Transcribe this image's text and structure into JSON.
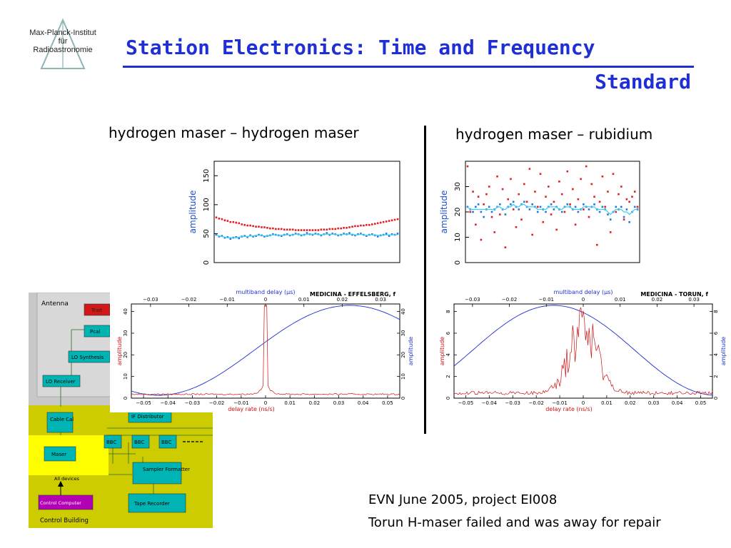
{
  "logo": {
    "lines": [
      "Max-Planck-Institut",
      "für",
      "Radioastronomie"
    ],
    "color": "#8fb4b4"
  },
  "title": {
    "line1": "Station Electronics: Time and Frequency",
    "line2": "Standard",
    "color": "#1f2fd6"
  },
  "columns": {
    "left_label": "hydrogen maser  –  hydrogen maser",
    "right_label": "hydrogen maser – rubidium"
  },
  "footer": {
    "line1": "EVN June 2005, project EI008",
    "line2": "Torun H-maser failed and was away for repair"
  },
  "block_diagram": {
    "antenna_label": "Antenna",
    "control_building_label": "Control Building",
    "boxes": {
      "trad": "Trad",
      "pcal": "Pcal",
      "lo_synth": "LO Synthesis",
      "lo_receiver": "LO Receiver",
      "cable_cal": "Cable Cal",
      "if_distributor": "IF Distributor",
      "bbc": "BBC",
      "maser": "Maser",
      "all_devices": "All devices",
      "sampler": "Sampler Formatter",
      "control_computer": "Control Computer",
      "tape_recorder": "Tape Recorder"
    },
    "colors": {
      "antenna_bg": "#c8c8c8",
      "building_bg": "#cccc00",
      "box": "#00b4b4",
      "maser_bg": "#ffff00",
      "red": "#d01818",
      "magenta": "#b400b4"
    }
  },
  "chart_data": [
    {
      "type": "scatter",
      "ylabel": "amplitude",
      "ylim": [
        0,
        175
      ],
      "yticks": [
        0,
        50,
        100,
        150
      ],
      "grid": false,
      "series": [
        {
          "color": "#e02020",
          "values": [
            78,
            76,
            75,
            73,
            72,
            70,
            70,
            69,
            68,
            66,
            65,
            64,
            64,
            63,
            62,
            62,
            61,
            61,
            60,
            59,
            59,
            58,
            58,
            58,
            57,
            57,
            57,
            57,
            56,
            56,
            56,
            56,
            56,
            56,
            56,
            56,
            56,
            57,
            57,
            57,
            58,
            58,
            58,
            59,
            59,
            60,
            60,
            61,
            62,
            63,
            63,
            64,
            64,
            65,
            65,
            66,
            67,
            68,
            69,
            70,
            71,
            72,
            73,
            74,
            75
          ]
        },
        {
          "color": "#1e78e0",
          "values": [
            48,
            45,
            46,
            43,
            44,
            41,
            43,
            44,
            42,
            45,
            46,
            44,
            47,
            45,
            46,
            48,
            47,
            45,
            46,
            47,
            49,
            48,
            47,
            46,
            48,
            49,
            47,
            48,
            50,
            49,
            47,
            48,
            51,
            49,
            48,
            50,
            49,
            47,
            49,
            51,
            48,
            50,
            49,
            47,
            48,
            50,
            49,
            51,
            48,
            47,
            49,
            50,
            48,
            46,
            48,
            49,
            47,
            45,
            47,
            48,
            50,
            46,
            49,
            48,
            50
          ]
        },
        {
          "color": "#40d0f0",
          "values": [
            48,
            46,
            45,
            44,
            43,
            43,
            43,
            43,
            44,
            45,
            45,
            45,
            46,
            46,
            47,
            47,
            47,
            46,
            46,
            47,
            48,
            48,
            47,
            47,
            48,
            48,
            48,
            48,
            49,
            49,
            48,
            48,
            49,
            49,
            49,
            49,
            49,
            48,
            49,
            49,
            49,
            49,
            49,
            48,
            48,
            49,
            49,
            49,
            49,
            48,
            48,
            49,
            48,
            47,
            48,
            48,
            47,
            47,
            47,
            48,
            48,
            48,
            48,
            48,
            48
          ]
        }
      ]
    },
    {
      "type": "scatter",
      "ylabel": "amplitude",
      "ylim": [
        0,
        40
      ],
      "yticks": [
        0,
        10,
        20,
        30
      ],
      "grid": false,
      "series": [
        {
          "color": "#e02020",
          "values": [
            38,
            20,
            28,
            15,
            26,
            9,
            23,
            27,
            30,
            18,
            12,
            34,
            19,
            29,
            6,
            25,
            33,
            21,
            14,
            27,
            17,
            31,
            24,
            37,
            11,
            28,
            22,
            35,
            16,
            26,
            30,
            19,
            24,
            13,
            32,
            27,
            20,
            36,
            23,
            29,
            15,
            25,
            33,
            21,
            38,
            18,
            31,
            26,
            7,
            24,
            34,
            22,
            28,
            12,
            35,
            20,
            27,
            30,
            17,
            25,
            24,
            26,
            28,
            22
          ]
        },
        {
          "color": "#1e78e0",
          "values": [
            22,
            21,
            20,
            22,
            23,
            20,
            18,
            21,
            22,
            20,
            21,
            22,
            23,
            21,
            19,
            22,
            23,
            24,
            22,
            21,
            23,
            24,
            22,
            21,
            23,
            22,
            20,
            22,
            21,
            20,
            22,
            23,
            21,
            22,
            21,
            20,
            22,
            23,
            22,
            21,
            22,
            20,
            21,
            23,
            22,
            21,
            22,
            23,
            21,
            20,
            22,
            21,
            19,
            17,
            20,
            22,
            21,
            22,
            18,
            21,
            16,
            20,
            22,
            21
          ]
        },
        {
          "color": "#40d0f0",
          "values": [
            22,
            21,
            21,
            21,
            21,
            21,
            21,
            21,
            21,
            21,
            21,
            22,
            22,
            21,
            21,
            22,
            22,
            23,
            22,
            22,
            23,
            23,
            22,
            22,
            22,
            22,
            21,
            21,
            21,
            21,
            22,
            22,
            22,
            22,
            21,
            21,
            22,
            22,
            22,
            21,
            21,
            21,
            21,
            22,
            22,
            22,
            22,
            22,
            21,
            21,
            21,
            21,
            20,
            19,
            20,
            21,
            21,
            21,
            20,
            20,
            19,
            20,
            21,
            21
          ]
        }
      ]
    },
    {
      "type": "line",
      "title": "MEDICINA - EFFELSBERG, f",
      "top_axis_label": "multiband delay (μs)",
      "top_ticks": [
        "−0.03",
        "−0.02",
        "−0.01",
        "0",
        "0.01",
        "0.02",
        "0.03"
      ],
      "xlabel": "delay rate (ns/s)",
      "x_ticks": [
        "−0.05",
        "−0.04",
        "−0.03",
        "−0.02",
        "−0.01",
        "0",
        "0.01",
        "0.02",
        "0.03",
        "0.04",
        "0.05"
      ],
      "ylabel_left": "amplitude",
      "ylabel_right": "amplitude",
      "left_yticks": [
        "0",
        "10",
        "20",
        "30",
        "40"
      ],
      "right_yticks": [
        "0",
        "10",
        "20",
        "30",
        "40"
      ],
      "series": [
        {
          "name": "delay",
          "color": "#2030d0",
          "peak_delay_us": 0.022,
          "min_delay_us": -0.028
        },
        {
          "name": "rate",
          "color": "#d01010",
          "peak_rate": 0.0
        }
      ]
    },
    {
      "type": "line",
      "title": "MEDICINA - TORUN, f",
      "top_axis_label": "multiband delay (μs)",
      "top_ticks": [
        "−0.03",
        "−0.02",
        "−0.01",
        "0",
        "0.01",
        "0.02",
        "0.03"
      ],
      "xlabel": "delay rate (ns/s)",
      "x_ticks": [
        "−0.05",
        "−0.04",
        "−0.03",
        "−0.02",
        "−0.01",
        "0",
        "0.01",
        "0.02",
        "0.03",
        "0.04",
        "0.05"
      ],
      "ylabel_left": "amplitude",
      "ylabel_right": "amplitude",
      "left_yticks": [
        "0",
        "2",
        "4",
        "6",
        "8"
      ],
      "right_yticks": [
        "0",
        "2",
        "4",
        "6",
        "8"
      ],
      "series": [
        {
          "name": "delay",
          "color": "#2030d0",
          "peak_delay_us": -0.008,
          "min_delay_us": 0.036
        },
        {
          "name": "rate",
          "color": "#d01010",
          "peak_rate": 0.0
        }
      ]
    }
  ]
}
